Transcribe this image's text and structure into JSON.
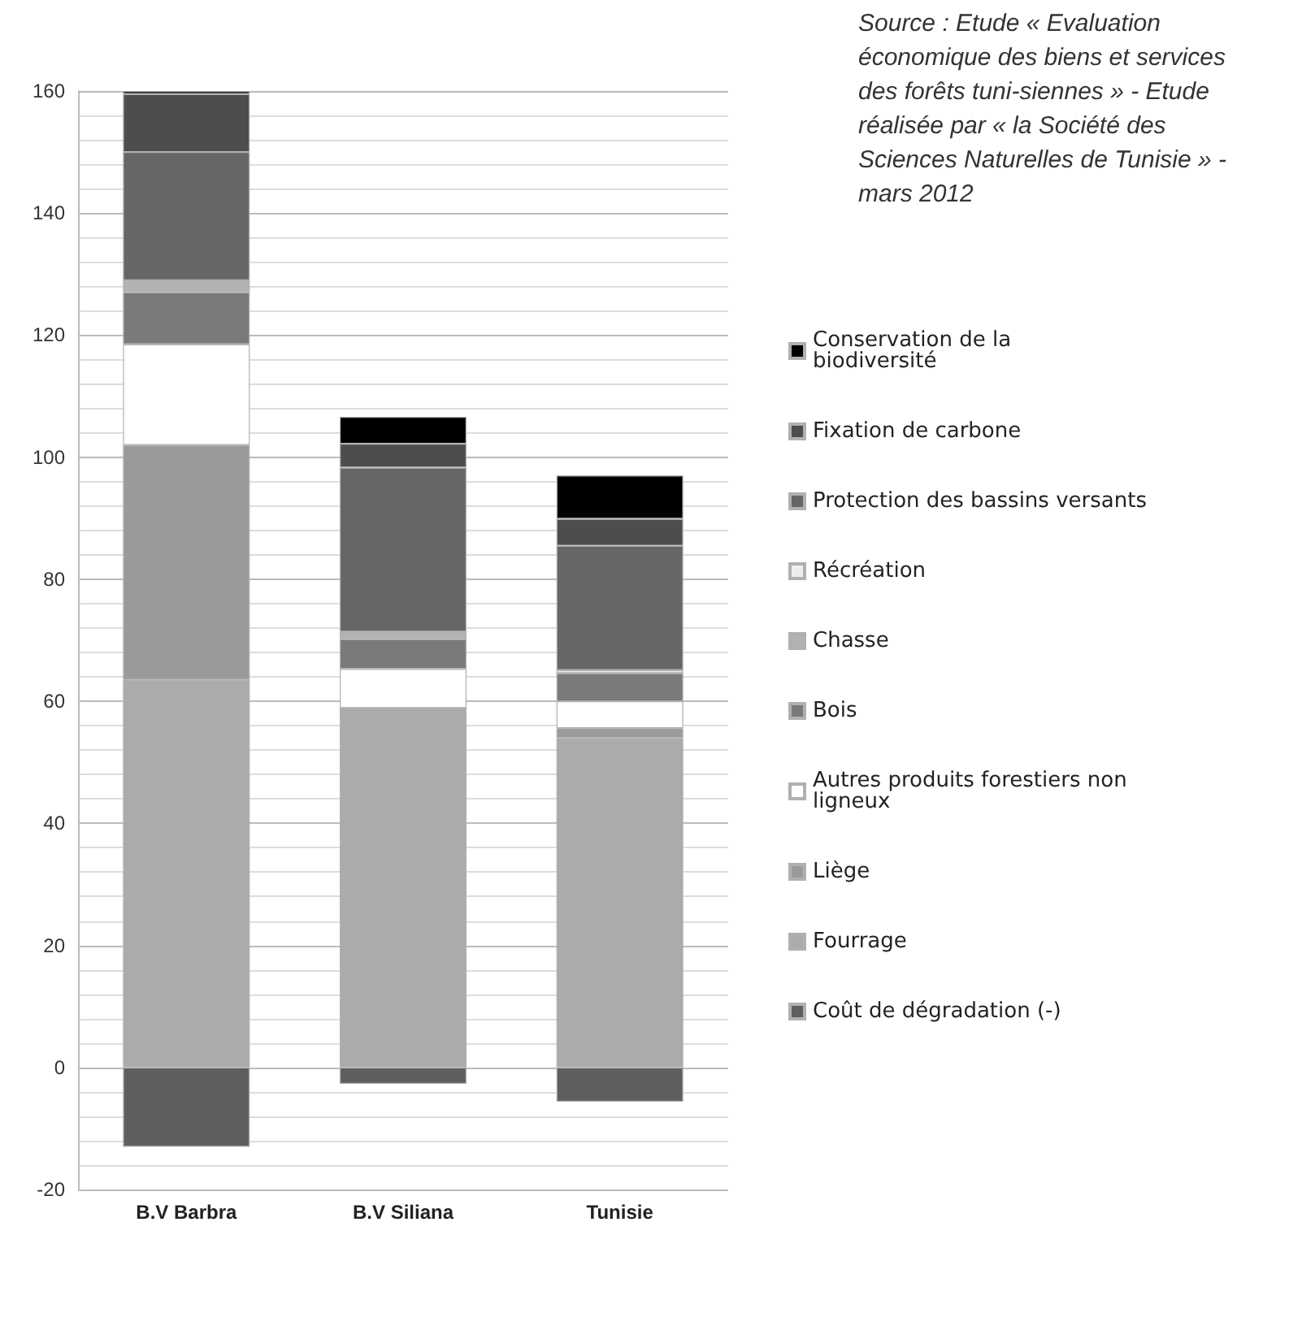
{
  "chart_data": {
    "type": "bar",
    "stacked": true,
    "categories": [
      "B.V Barbra",
      "B.V Siliana",
      "Tunisie"
    ],
    "series": [
      {
        "name": "Coût de dégradation (-)",
        "color": "#5e5e5e",
        "values": [
          -13,
          -2.7,
          -5.6
        ]
      },
      {
        "name": "Fourrage",
        "color": "#ababab",
        "values": [
          63.5,
          58.9,
          54
        ]
      },
      {
        "name": "Liège",
        "color": "#9a9a9a",
        "values": [
          38.5,
          0,
          1.6
        ]
      },
      {
        "name": "Autres produits forestiers non ligneux",
        "color": "#ffffff",
        "values": [
          16.5,
          6.4,
          4.4
        ]
      },
      {
        "name": "Bois",
        "color": "#7a7a7a",
        "values": [
          8.5,
          4.9,
          4.6
        ]
      },
      {
        "name": "Chasse",
        "color": "#b3b3b3",
        "values": [
          2,
          1.2,
          0
        ]
      },
      {
        "name": "Récréation",
        "color": "#eeeeee",
        "values": [
          0,
          0,
          0.5
        ]
      },
      {
        "name": "Protection des bassins versants",
        "color": "#666666",
        "values": [
          21,
          26.9,
          20.4
        ]
      },
      {
        "name": "Fixation de carbone",
        "color": "#4d4d4d",
        "values": [
          9.5,
          3.9,
          4.4
        ]
      },
      {
        "name": "Conservation de la biodiversité",
        "color": "#000000",
        "values": [
          0.5,
          4.4,
          7.1
        ]
      }
    ],
    "ylim": [
      -20,
      160
    ],
    "yticks": [
      -20,
      0,
      20,
      40,
      60,
      80,
      100,
      120,
      140,
      160
    ],
    "grid": true,
    "legend": "right",
    "annotations": [
      "Source : Etude « Evaluation économique des biens et services des forêts tuni-siennes » - Etude réalisée par « la Société des Sciences Naturelles de Tunisie » - mars 2012"
    ]
  }
}
